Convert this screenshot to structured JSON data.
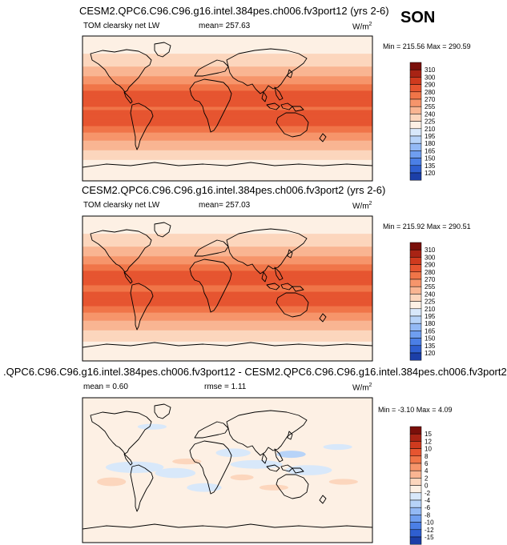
{
  "season": "SON",
  "colors": {
    "main_scale": [
      "#08306b",
      "#1c3fa8",
      "#2f5fd0",
      "#4b7fe6",
      "#6f9ef0",
      "#93b9f5",
      "#b7d3f8",
      "#d8e8fa",
      "#fdf0e4",
      "#fcd6bd",
      "#f9b592",
      "#f6956b",
      "#f07548",
      "#e65530",
      "#cf3a1e",
      "#a82314",
      "#7a0f0a"
    ],
    "diff_scale": [
      "#08306b",
      "#1c3fa8",
      "#2f5fd0",
      "#4b7fe6",
      "#6f9ef0",
      "#93b9f5",
      "#b7d3f8",
      "#d8e8fa",
      "#fdf0e4",
      "#fcd6bd",
      "#f9b592",
      "#f6956b",
      "#f07548",
      "#e65530",
      "#cf3a1e",
      "#a82314",
      "#7a0f0a"
    ],
    "land_line": "#000000",
    "frame": "#000000"
  },
  "chart_data": [
    {
      "type": "heatmap",
      "title": "CESM2.QPC6.C96.C96.g16.intel.384pes.ch006.fv3port12 (yrs 2-6)",
      "variable": "TOM clearsky net LW",
      "mean_text": "mean= 257.63",
      "units": "W/m",
      "units_sup": "2",
      "min_max_text": "Min = 215.56 Max = 290.59",
      "min": 215.56,
      "max": 290.59,
      "mean": 257.63,
      "colorbar_levels": [
        "310",
        "300",
        "290",
        "280",
        "270",
        "255",
        "240",
        "225",
        "210",
        "195",
        "180",
        "165",
        "150",
        "135",
        "120"
      ],
      "lat_profile": [
        [
          -90,
          215
        ],
        [
          -75,
          218
        ],
        [
          -60,
          228
        ],
        [
          -45,
          250
        ],
        [
          -35,
          262
        ],
        [
          -25,
          278
        ],
        [
          -15,
          286
        ],
        [
          -8,
          284
        ],
        [
          0,
          279
        ],
        [
          8,
          284
        ],
        [
          15,
          287
        ],
        [
          25,
          278
        ],
        [
          35,
          262
        ],
        [
          45,
          248
        ],
        [
          60,
          232
        ],
        [
          75,
          220
        ],
        [
          90,
          216
        ]
      ]
    },
    {
      "type": "heatmap",
      "title": "CESM2.QPC6.C96.C96.g16.intel.384pes.ch006.fv3port2 (yrs 2-6)",
      "variable": "TOM clearsky net LW",
      "mean_text": "mean= 257.03",
      "units": "W/m",
      "units_sup": "2",
      "min_max_text": "Min = 215.92 Max = 290.51",
      "min": 215.92,
      "max": 290.51,
      "mean": 257.03,
      "colorbar_levels": [
        "310",
        "300",
        "290",
        "280",
        "270",
        "255",
        "240",
        "225",
        "210",
        "195",
        "180",
        "165",
        "150",
        "135",
        "120"
      ],
      "lat_profile": [
        [
          -90,
          216
        ],
        [
          -75,
          219
        ],
        [
          -60,
          229
        ],
        [
          -45,
          249
        ],
        [
          -35,
          261
        ],
        [
          -25,
          277
        ],
        [
          -15,
          286
        ],
        [
          -8,
          283
        ],
        [
          0,
          278
        ],
        [
          8,
          283
        ],
        [
          15,
          287
        ],
        [
          25,
          277
        ],
        [
          35,
          261
        ],
        [
          45,
          247
        ],
        [
          60,
          231
        ],
        [
          75,
          219
        ],
        [
          90,
          216
        ]
      ]
    },
    {
      "type": "heatmap",
      "title": ".QPC6.C96.C96.g16.intel.384pes.ch006.fv3port12 - CESM2.QPC6.C96.C96.g16.intel.384pes.ch006.fv3port2",
      "variable": "",
      "mean_text": "mean =   0.60",
      "rmse_text": "rmse =   1.11",
      "units": "W/m",
      "units_sup": "2",
      "min_max_text": "Min = -3.10 Max =   4.09",
      "min": -3.1,
      "max": 4.09,
      "mean": 0.6,
      "rmse": 1.11,
      "colorbar_levels": [
        "15",
        "12",
        "10",
        "8",
        "6",
        "4",
        "2",
        "0",
        "-2",
        "-4",
        "-6",
        "-8",
        "-10",
        "-12",
        "-15"
      ]
    }
  ]
}
